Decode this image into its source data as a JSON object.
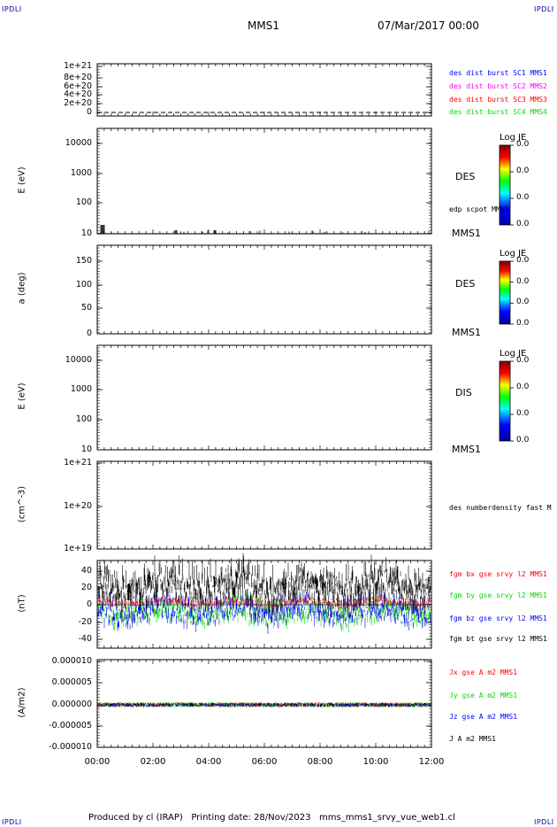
{
  "corners": {
    "tl": "IPDLI",
    "tr": "IPDLI",
    "bl": "IPDLI",
    "br": "IPDLI"
  },
  "header": {
    "spacecraft": "MMS1",
    "date": "07/Mar/2017 00:00"
  },
  "footer": "Produced by cl (IRAP)   Printing date: 28/Nov/2023   mms_mms1_srvy_vue_web1.cl",
  "colors": {
    "blue": "#0000ff",
    "magenta": "#ff00ff",
    "red": "#ff0000",
    "green": "#00dd00",
    "black": "#000000"
  },
  "chart_data": [
    {
      "type": "line",
      "panel": "dist",
      "ylabel": "",
      "yticks": [
        "1e+21",
        "8e+20",
        "6e+20",
        "4e+20",
        "2e+20",
        "0"
      ],
      "legend": [
        {
          "name": "des dist burst SC1 MMS1",
          "color": "blue"
        },
        {
          "name": "des dist burst SC2 MMS2",
          "color": "magenta"
        },
        {
          "name": "des dist burst SC3 MMS3",
          "color": "red"
        },
        {
          "name": "des dist burst SC4 MMS4",
          "color": "green"
        }
      ],
      "series": [
        {
          "values": [
            0,
            0
          ],
          "style": "dashed"
        }
      ]
    },
    {
      "type": "heatmap",
      "panel": "des_energy",
      "ylabel": "E (eV)",
      "log": true,
      "yticks": [
        "10000",
        "1000",
        "100",
        "10"
      ],
      "side_label": "DES",
      "bottom_label": "MMS1",
      "legend": [
        {
          "name": "edp scpot MMS1",
          "color": "black"
        }
      ],
      "colorbar": {
        "title": "Log JE",
        "ticks": [
          "0.0",
          "0.0",
          "0.0",
          "0.0"
        ]
      }
    },
    {
      "type": "heatmap",
      "panel": "des_pitch",
      "ylabel": "a (deg)",
      "yticks": [
        "150",
        "100",
        "50",
        "0"
      ],
      "side_label": "DES",
      "bottom_label": "MMS1",
      "colorbar": {
        "title": "Log JE",
        "ticks": [
          "0.0",
          "0.0",
          "0.0",
          "0.0"
        ]
      }
    },
    {
      "type": "heatmap",
      "panel": "dis_energy",
      "ylabel": "E (eV)",
      "log": true,
      "yticks": [
        "10000",
        "1000",
        "100",
        "10"
      ],
      "side_label": "DIS",
      "bottom_label": "MMS1",
      "colorbar": {
        "title": "Log JE",
        "ticks": [
          "0.0",
          "0.0",
          "0.0",
          "0.0"
        ]
      }
    },
    {
      "type": "line",
      "panel": "density",
      "ylabel": "(cm^-3)",
      "log": true,
      "yticks": [
        "1e+21",
        "1e+20",
        "1e+19"
      ],
      "legend": [
        {
          "name": "des numberdensity fast M",
          "color": "black"
        }
      ]
    },
    {
      "type": "line",
      "panel": "fgm",
      "ylabel": "(nT)",
      "yticks": [
        "40",
        "20",
        "0",
        "-20",
        "-40"
      ],
      "ylim": [
        -47,
        48
      ],
      "legend": [
        {
          "name": "fgm bx gse srvy l2 MMS1",
          "color": "red"
        },
        {
          "name": "fgm by gse srvy l2 MMS1",
          "color": "green"
        },
        {
          "name": "fgm bz gse srvy l2 MMS1",
          "color": "blue"
        },
        {
          "name": "fgm bt gse srvy l2 MMS1",
          "color": "black"
        }
      ]
    },
    {
      "type": "line",
      "panel": "current",
      "ylabel": "(A/m2)",
      "yticks": [
        "0.000010",
        "0.000005",
        "0.000000",
        "-0.000005",
        "-0.000010"
      ],
      "ylim": [
        -1e-05,
        1e-05
      ],
      "legend": [
        {
          "name": "Jx gse A m2 MMS1",
          "color": "red"
        },
        {
          "name": "Jy gse A m2 MMS1",
          "color": "green"
        },
        {
          "name": "Jz gse A m2 MMS1",
          "color": "blue"
        },
        {
          "name": "J A m2 MMS1",
          "color": "black"
        }
      ]
    }
  ],
  "xaxis": {
    "ticks": [
      "00:00",
      "02:00",
      "04:00",
      "06:00",
      "08:00",
      "10:00",
      "12:00"
    ]
  }
}
